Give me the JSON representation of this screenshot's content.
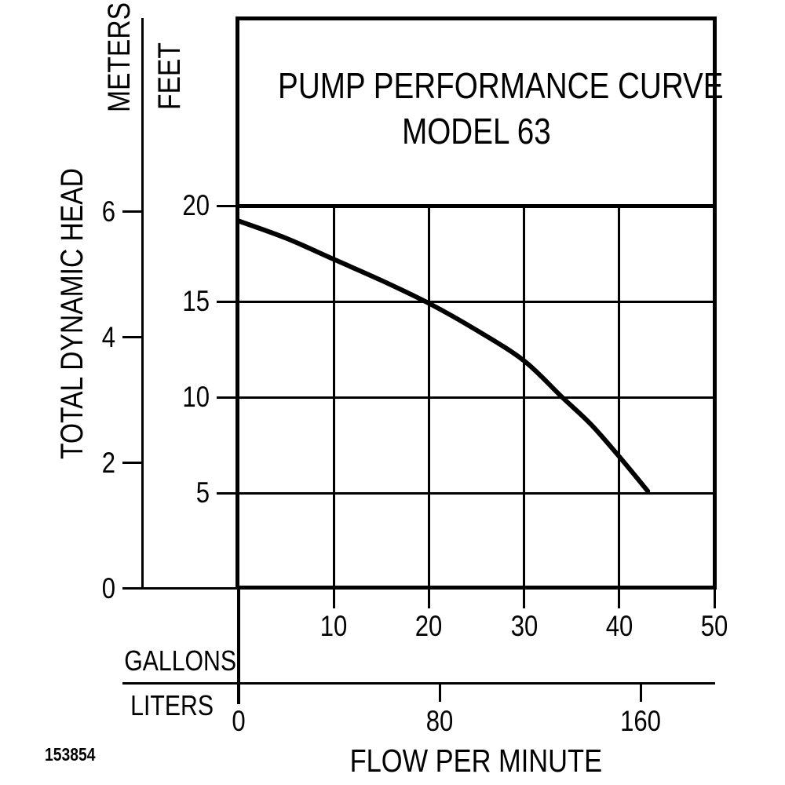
{
  "page": {
    "background": "#ffffff",
    "ink": "#000000"
  },
  "title": {
    "line1": "PUMP PERFORMANCE CURVE",
    "line2": "MODEL 63"
  },
  "left_axis": {
    "axis_label": "TOTAL DYNAMIC HEAD",
    "unit_outer": "METERS",
    "unit_inner": "FEET"
  },
  "bottom_axis": {
    "axis_label": "FLOW PER MINUTE",
    "row1_unit": "GALLONS",
    "row2_unit": "LITERS"
  },
  "footnote": "153854",
  "chart_data": {
    "type": "line",
    "title": "PUMP PERFORMANCE CURVE MODEL 63",
    "xlabel": "FLOW PER MINUTE",
    "ylabel": "TOTAL DYNAMIC HEAD",
    "grid": true,
    "x_axis": {
      "primary_unit": "GALLONS",
      "primary_ticks": [
        10,
        20,
        30,
        40,
        50
      ],
      "primary_range": [
        0,
        50
      ],
      "secondary_unit": "LITERS",
      "secondary_ticks": [
        0,
        80,
        160
      ],
      "liters_per_gallon": 3.78541
    },
    "y_axis": {
      "primary_unit": "FEET",
      "primary_ticks": [
        20,
        15,
        10,
        5
      ],
      "primary_range": [
        0,
        20
      ],
      "secondary_unit": "METERS",
      "secondary_ticks": [
        6,
        4,
        2,
        0
      ],
      "feet_per_meter": 3.28084
    },
    "series": [
      {
        "name": "MODEL 63",
        "x_gallons": [
          0,
          5,
          10,
          15,
          20,
          25,
          30,
          34,
          37,
          40,
          43
        ],
        "y_feet": [
          19.2,
          18.3,
          17.2,
          16.1,
          14.9,
          13.5,
          11.9,
          10,
          8.6,
          6.9,
          5.1
        ]
      }
    ]
  }
}
